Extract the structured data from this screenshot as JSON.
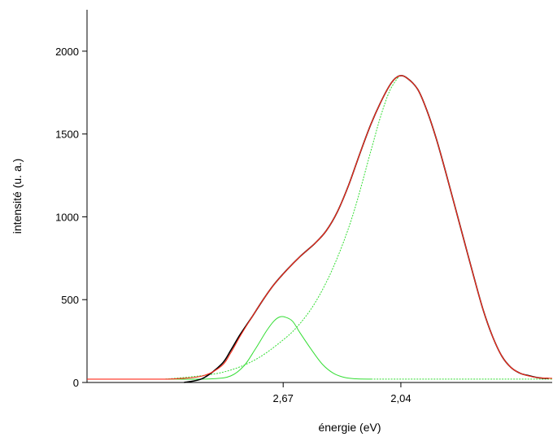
{
  "chart_data": {
    "type": "line",
    "title": "",
    "xlabel": "énergie (eV)",
    "ylabel": "intensité (u. a.)",
    "x_ticks": [
      {
        "label": "2,67",
        "value": 2.67
      },
      {
        "label": "2,04",
        "value": 2.04
      }
    ],
    "y_ticks": [
      0,
      500,
      1000,
      1500,
      2000
    ],
    "xlim": [
      3.72,
      1.23
    ],
    "ylim": [
      0,
      2250
    ],
    "x_reversed": true,
    "grid": false,
    "legend": "none",
    "colors": {
      "measured": "#000000",
      "fit": "#ff2a1a",
      "components": "#33dd33"
    },
    "series": [
      {
        "role": "measured",
        "style": "solid",
        "points": [
          [
            3.2,
            0
          ],
          [
            3.1,
            25
          ],
          [
            3.0,
            110
          ],
          [
            2.95,
            195
          ],
          [
            2.9,
            290
          ],
          [
            2.84,
            390
          ],
          [
            2.78,
            495
          ],
          [
            2.72,
            590
          ],
          [
            2.65,
            680
          ],
          [
            2.58,
            760
          ],
          [
            2.5,
            840
          ],
          [
            2.44,
            915
          ],
          [
            2.38,
            1030
          ],
          [
            2.32,
            1190
          ],
          [
            2.26,
            1380
          ],
          [
            2.2,
            1560
          ],
          [
            2.14,
            1710
          ],
          [
            2.09,
            1810
          ],
          [
            2.05,
            1850
          ],
          [
            2.01,
            1840
          ],
          [
            1.95,
            1770
          ],
          [
            1.9,
            1640
          ],
          [
            1.85,
            1470
          ],
          [
            1.8,
            1270
          ],
          [
            1.75,
            1060
          ],
          [
            1.7,
            850
          ],
          [
            1.65,
            640
          ],
          [
            1.6,
            440
          ],
          [
            1.55,
            280
          ],
          [
            1.5,
            160
          ],
          [
            1.45,
            90
          ],
          [
            1.4,
            55
          ],
          [
            1.35,
            40
          ],
          [
            1.3,
            28
          ],
          [
            1.25,
            25
          ]
        ]
      },
      {
        "role": "fit",
        "style": "solid",
        "points": [
          [
            3.72,
            20
          ],
          [
            3.4,
            20
          ],
          [
            3.25,
            22
          ],
          [
            3.1,
            40
          ],
          [
            3.0,
            100
          ],
          [
            2.95,
            180
          ],
          [
            2.9,
            280
          ],
          [
            2.84,
            390
          ],
          [
            2.78,
            495
          ],
          [
            2.72,
            590
          ],
          [
            2.65,
            680
          ],
          [
            2.58,
            760
          ],
          [
            2.5,
            840
          ],
          [
            2.44,
            915
          ],
          [
            2.38,
            1030
          ],
          [
            2.32,
            1190
          ],
          [
            2.26,
            1380
          ],
          [
            2.2,
            1560
          ],
          [
            2.14,
            1710
          ],
          [
            2.09,
            1810
          ],
          [
            2.05,
            1850
          ],
          [
            2.01,
            1840
          ],
          [
            1.95,
            1770
          ],
          [
            1.9,
            1640
          ],
          [
            1.85,
            1470
          ],
          [
            1.8,
            1270
          ],
          [
            1.75,
            1060
          ],
          [
            1.7,
            850
          ],
          [
            1.65,
            640
          ],
          [
            1.6,
            440
          ],
          [
            1.55,
            280
          ],
          [
            1.5,
            160
          ],
          [
            1.45,
            90
          ],
          [
            1.4,
            55
          ],
          [
            1.35,
            38
          ],
          [
            1.3,
            28
          ],
          [
            1.23,
            25
          ]
        ]
      },
      {
        "role": "component",
        "style": "dashed",
        "points": [
          [
            3.3,
            20
          ],
          [
            3.2,
            30
          ],
          [
            3.1,
            42
          ],
          [
            3.0,
            60
          ],
          [
            2.9,
            95
          ],
          [
            2.8,
            150
          ],
          [
            2.7,
            230
          ],
          [
            2.6,
            330
          ],
          [
            2.5,
            480
          ],
          [
            2.4,
            700
          ],
          [
            2.3,
            1000
          ],
          [
            2.2,
            1400
          ],
          [
            2.15,
            1600
          ],
          [
            2.1,
            1760
          ],
          [
            2.05,
            1850
          ]
        ]
      },
      {
        "role": "component",
        "style": "solid",
        "points": [
          [
            3.3,
            20
          ],
          [
            3.05,
            22
          ],
          [
            2.95,
            40
          ],
          [
            2.88,
            100
          ],
          [
            2.82,
            200
          ],
          [
            2.76,
            310
          ],
          [
            2.72,
            370
          ],
          [
            2.69,
            395
          ],
          [
            2.66,
            395
          ],
          [
            2.62,
            370
          ],
          [
            2.58,
            300
          ],
          [
            2.52,
            200
          ],
          [
            2.46,
            110
          ],
          [
            2.4,
            55
          ],
          [
            2.34,
            30
          ],
          [
            2.28,
            22
          ],
          [
            2.2,
            20
          ]
        ]
      },
      {
        "role": "component",
        "style": "dashed",
        "points": [
          [
            2.2,
            20
          ],
          [
            1.9,
            20
          ],
          [
            1.6,
            20
          ],
          [
            1.23,
            20
          ]
        ]
      }
    ]
  }
}
